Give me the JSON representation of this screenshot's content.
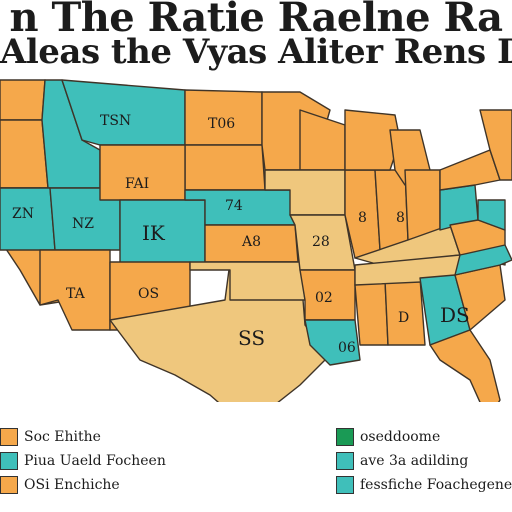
{
  "title_line1": "n The Ratie Raelne Ra",
  "title_line2": "Aleas the Vyas Aliter Rens Dar",
  "colors": {
    "orange": "#f5a84b",
    "teal": "#3fbfba",
    "tan": "#efc77d",
    "green": "#1a9a55",
    "border": "#3f3428"
  },
  "map_labels": {
    "north_teal": "TSN",
    "north_orange": "T06",
    "wyoming": "FAI",
    "nevada": "ZN",
    "utah": "NZ",
    "colorado": "IK",
    "nebraska": "74",
    "arizona": "TA",
    "new_mexico": "OS",
    "texas": "SS",
    "kansas": "A8",
    "oklahoma": "28",
    "arkansas": "02",
    "carolina": "DS",
    "alabama": "D",
    "illinois": "8",
    "indiana": "8",
    "louisiana": "06"
  },
  "legend_left": [
    {
      "label": "Soc Ehithe",
      "color_key": "orange"
    },
    {
      "label": "Piua Uaeld Focheen",
      "color_key": "teal"
    },
    {
      "label": "OSi Enchiche",
      "color_key": "orange"
    }
  ],
  "legend_right": [
    {
      "label": "oseddoome",
      "color_key": "green"
    },
    {
      "label": "ave 3a adilding",
      "color_key": "teal"
    },
    {
      "label": "fessfiche Foachegener",
      "color_key": "teal"
    }
  ]
}
